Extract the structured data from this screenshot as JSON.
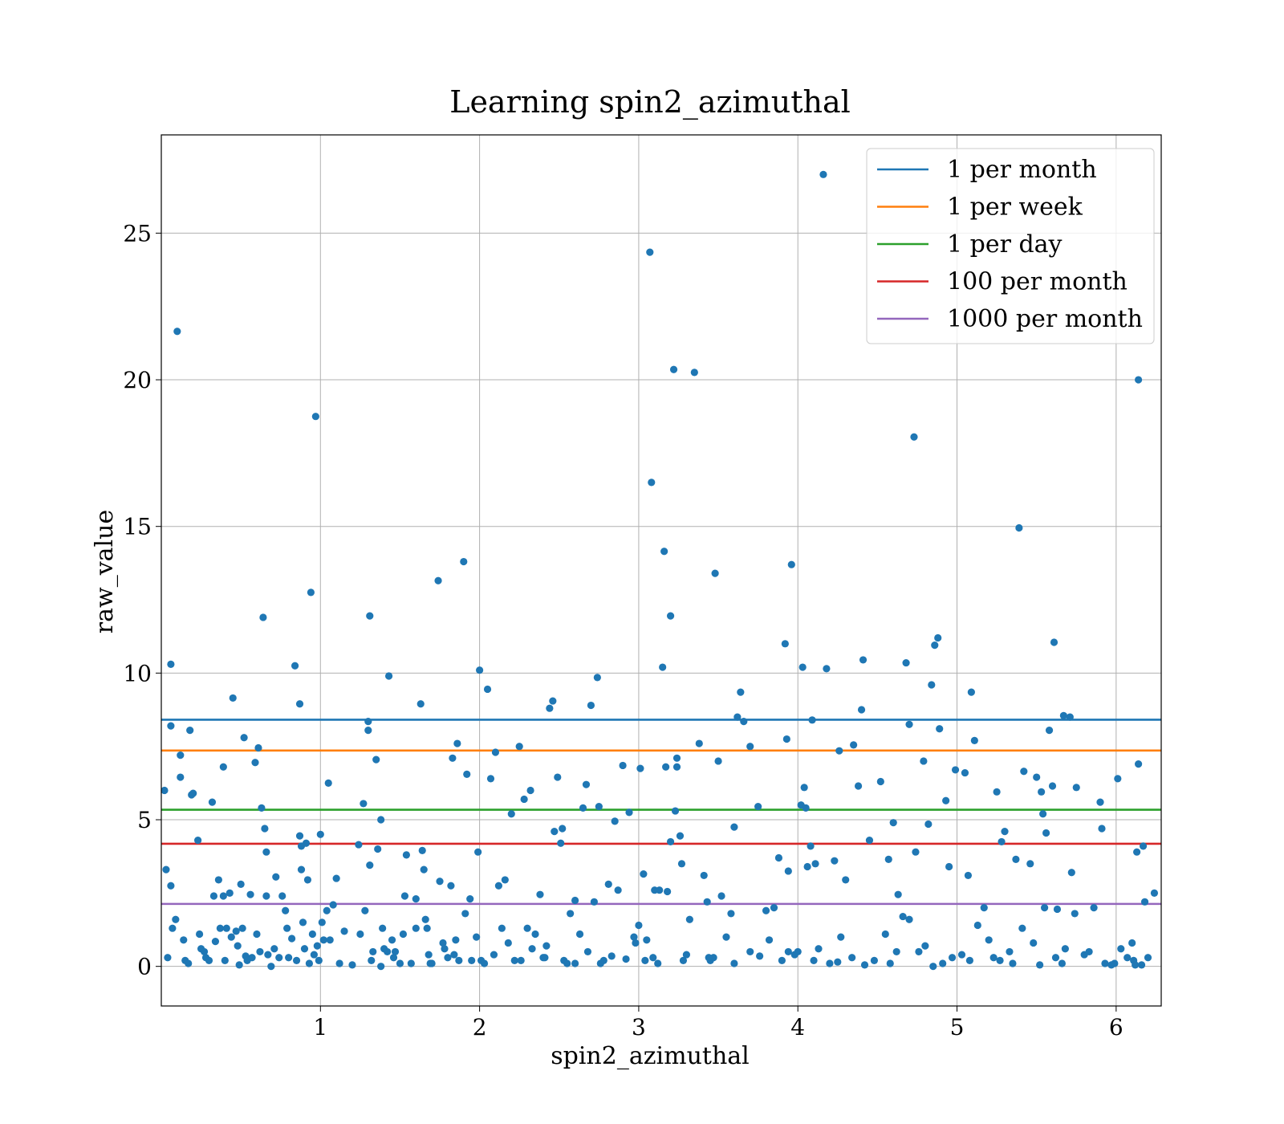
{
  "chart_data": {
    "type": "scatter",
    "title": "Learning spin2_azimuthal",
    "xlabel": "spin2_azimuthal",
    "ylabel": "raw_value",
    "xlim": [
      0.0,
      6.2832
    ],
    "ylim": [
      -1.35,
      28.35
    ],
    "xticks": [
      1,
      2,
      3,
      4,
      5,
      6
    ],
    "yticks": [
      0,
      5,
      10,
      15,
      20,
      25
    ],
    "grid": true,
    "legend_position": "top-right",
    "point_color": "#1f77b4",
    "lines": [
      {
        "name": "1 per month",
        "y": 8.41,
        "color": "#1f77b4"
      },
      {
        "name": "1 per week",
        "y": 7.36,
        "color": "#ff7f0e"
      },
      {
        "name": "1 per day",
        "y": 5.34,
        "color": "#2ca02c"
      },
      {
        "name": "100 per month",
        "y": 4.18,
        "color": "#d62728"
      },
      {
        "name": "1000 per month",
        "y": 2.13,
        "color": "#9467bd"
      }
    ],
    "points": [
      [
        0.02,
        6.0
      ],
      [
        0.03,
        3.3
      ],
      [
        0.04,
        0.3
      ],
      [
        0.06,
        10.3
      ],
      [
        0.06,
        8.2
      ],
      [
        0.06,
        2.75
      ],
      [
        0.07,
        1.3
      ],
      [
        0.09,
        1.6
      ],
      [
        0.1,
        21.65
      ],
      [
        0.12,
        7.2
      ],
      [
        0.12,
        6.45
      ],
      [
        0.14,
        0.9
      ],
      [
        0.15,
        0.2
      ],
      [
        0.18,
        8.05
      ],
      [
        0.19,
        5.85
      ],
      [
        0.2,
        5.9
      ],
      [
        0.23,
        4.3
      ],
      [
        0.24,
        1.1
      ],
      [
        0.25,
        0.6
      ],
      [
        0.28,
        0.3
      ],
      [
        0.3,
        0.2
      ],
      [
        0.32,
        5.6
      ],
      [
        0.33,
        2.4
      ],
      [
        0.34,
        0.85
      ],
      [
        0.36,
        2.95
      ],
      [
        0.37,
        1.3
      ],
      [
        0.39,
        6.8
      ],
      [
        0.39,
        2.4
      ],
      [
        0.4,
        0.2
      ],
      [
        0.41,
        1.3
      ],
      [
        0.43,
        2.5
      ],
      [
        0.44,
        1.0
      ],
      [
        0.45,
        9.15
      ],
      [
        0.47,
        1.2
      ],
      [
        0.48,
        0.7
      ],
      [
        0.5,
        2.8
      ],
      [
        0.51,
        1.3
      ],
      [
        0.52,
        7.8
      ],
      [
        0.53,
        0.35
      ],
      [
        0.56,
        2.45
      ],
      [
        0.57,
        0.3
      ],
      [
        0.59,
        6.95
      ],
      [
        0.6,
        1.1
      ],
      [
        0.61,
        7.45
      ],
      [
        0.62,
        0.5
      ],
      [
        0.63,
        5.4
      ],
      [
        0.64,
        11.9
      ],
      [
        0.65,
        4.7
      ],
      [
        0.66,
        3.9
      ],
      [
        0.66,
        2.4
      ],
      [
        0.67,
        0.4
      ],
      [
        0.69,
        0.0
      ],
      [
        0.71,
        0.6
      ],
      [
        0.72,
        3.05
      ],
      [
        0.74,
        0.3
      ],
      [
        0.76,
        2.4
      ],
      [
        0.78,
        1.9
      ],
      [
        0.8,
        0.3
      ],
      [
        0.82,
        0.95
      ],
      [
        0.84,
        10.25
      ],
      [
        0.85,
        0.2
      ],
      [
        0.87,
        8.95
      ],
      [
        0.87,
        4.45
      ],
      [
        0.88,
        3.3
      ],
      [
        0.88,
        4.1
      ],
      [
        0.89,
        1.5
      ],
      [
        0.9,
        0.6
      ],
      [
        0.91,
        4.2
      ],
      [
        0.92,
        2.95
      ],
      [
        0.93,
        0.1
      ],
      [
        0.94,
        12.75
      ],
      [
        0.95,
        1.1
      ],
      [
        0.97,
        18.75
      ],
      [
        0.98,
        0.7
      ],
      [
        0.99,
        0.2
      ],
      [
        1.0,
        4.5
      ],
      [
        1.01,
        1.5
      ],
      [
        1.02,
        0.9
      ],
      [
        1.04,
        1.9
      ],
      [
        1.05,
        6.25
      ],
      [
        1.06,
        0.9
      ],
      [
        1.08,
        2.1
      ],
      [
        1.1,
        3.0
      ],
      [
        1.15,
        1.2
      ],
      [
        1.2,
        0.05
      ],
      [
        1.24,
        4.15
      ],
      [
        1.25,
        1.1
      ],
      [
        1.27,
        5.55
      ],
      [
        1.28,
        1.9
      ],
      [
        1.3,
        8.35
      ],
      [
        1.3,
        8.05
      ],
      [
        1.31,
        3.45
      ],
      [
        1.31,
        11.95
      ],
      [
        1.32,
        0.2
      ],
      [
        1.35,
        7.05
      ],
      [
        1.36,
        4.0
      ],
      [
        1.38,
        5.0
      ],
      [
        1.39,
        1.3
      ],
      [
        1.4,
        0.6
      ],
      [
        1.42,
        0.5
      ],
      [
        1.43,
        9.9
      ],
      [
        1.45,
        0.9
      ],
      [
        1.47,
        0.5
      ],
      [
        1.52,
        1.1
      ],
      [
        1.53,
        2.4
      ],
      [
        1.54,
        3.8
      ],
      [
        1.57,
        0.1
      ],
      [
        1.6,
        2.3
      ],
      [
        1.63,
        8.95
      ],
      [
        1.64,
        3.95
      ],
      [
        1.65,
        3.3
      ],
      [
        1.66,
        1.6
      ],
      [
        1.67,
        1.3
      ],
      [
        1.68,
        0.4
      ],
      [
        1.7,
        0.1
      ],
      [
        1.74,
        13.15
      ],
      [
        1.75,
        2.9
      ],
      [
        1.77,
        0.8
      ],
      [
        1.8,
        0.3
      ],
      [
        1.82,
        2.75
      ],
      [
        1.83,
        7.1
      ],
      [
        1.85,
        0.9
      ],
      [
        1.86,
        7.6
      ],
      [
        1.87,
        0.2
      ],
      [
        1.9,
        13.8
      ],
      [
        1.91,
        1.8
      ],
      [
        1.92,
        6.55
      ],
      [
        1.94,
        2.3
      ],
      [
        1.98,
        1.0
      ],
      [
        1.99,
        3.9
      ],
      [
        2.0,
        10.1
      ],
      [
        2.01,
        0.2
      ],
      [
        2.05,
        9.45
      ],
      [
        2.07,
        6.4
      ],
      [
        2.09,
        0.4
      ],
      [
        2.1,
        7.3
      ],
      [
        2.12,
        2.75
      ],
      [
        2.14,
        1.3
      ],
      [
        2.16,
        2.95
      ],
      [
        2.2,
        5.2
      ],
      [
        2.22,
        0.2
      ],
      [
        2.25,
        7.5
      ],
      [
        2.28,
        5.7
      ],
      [
        2.3,
        1.3
      ],
      [
        2.32,
        6.0
      ],
      [
        2.35,
        1.1
      ],
      [
        2.38,
        2.45
      ],
      [
        2.4,
        0.3
      ],
      [
        2.42,
        0.7
      ],
      [
        2.44,
        8.8
      ],
      [
        2.46,
        9.05
      ],
      [
        2.47,
        4.6
      ],
      [
        2.49,
        6.45
      ],
      [
        2.51,
        4.2
      ],
      [
        2.52,
        4.7
      ],
      [
        2.55,
        0.1
      ],
      [
        2.57,
        1.8
      ],
      [
        2.6,
        2.25
      ],
      [
        2.63,
        1.1
      ],
      [
        2.65,
        5.4
      ],
      [
        2.67,
        6.2
      ],
      [
        2.7,
        8.9
      ],
      [
        2.72,
        2.2
      ],
      [
        2.74,
        9.85
      ],
      [
        2.75,
        5.45
      ],
      [
        2.78,
        0.2
      ],
      [
        2.81,
        2.8
      ],
      [
        2.85,
        4.95
      ],
      [
        2.87,
        2.6
      ],
      [
        2.9,
        6.85
      ],
      [
        2.94,
        5.25
      ],
      [
        2.97,
        1.0
      ],
      [
        3.0,
        1.4
      ],
      [
        3.01,
        6.75
      ],
      [
        3.03,
        3.15
      ],
      [
        3.05,
        0.9
      ],
      [
        3.07,
        24.35
      ],
      [
        3.08,
        16.5
      ],
      [
        3.1,
        2.6
      ],
      [
        3.13,
        2.6
      ],
      [
        3.15,
        10.2
      ],
      [
        3.16,
        14.15
      ],
      [
        3.17,
        6.8
      ],
      [
        3.18,
        2.55
      ],
      [
        3.2,
        11.95
      ],
      [
        3.2,
        4.25
      ],
      [
        3.22,
        20.35
      ],
      [
        3.23,
        5.3
      ],
      [
        3.24,
        7.1
      ],
      [
        3.24,
        6.8
      ],
      [
        3.26,
        4.45
      ],
      [
        3.27,
        3.5
      ],
      [
        3.3,
        0.4
      ],
      [
        3.35,
        20.25
      ],
      [
        3.38,
        7.6
      ],
      [
        3.41,
        3.1
      ],
      [
        3.43,
        2.2
      ],
      [
        3.45,
        0.2
      ],
      [
        3.48,
        13.4
      ],
      [
        3.5,
        7.0
      ],
      [
        3.52,
        2.4
      ],
      [
        3.55,
        1.0
      ],
      [
        3.6,
        4.75
      ],
      [
        3.62,
        8.5
      ],
      [
        3.64,
        9.35
      ],
      [
        3.66,
        8.35
      ],
      [
        3.7,
        7.5
      ],
      [
        3.75,
        5.45
      ],
      [
        3.8,
        1.9
      ],
      [
        3.85,
        2.0
      ],
      [
        3.88,
        3.7
      ],
      [
        3.92,
        11.0
      ],
      [
        3.93,
        7.75
      ],
      [
        3.94,
        3.25
      ],
      [
        3.96,
        13.7
      ],
      [
        3.98,
        0.4
      ],
      [
        4.02,
        5.5
      ],
      [
        4.03,
        10.2
      ],
      [
        4.04,
        6.1
      ],
      [
        4.05,
        5.4
      ],
      [
        4.06,
        3.4
      ],
      [
        4.08,
        4.1
      ],
      [
        4.09,
        8.4
      ],
      [
        4.11,
        3.5
      ],
      [
        4.16,
        27.0
      ],
      [
        4.18,
        10.15
      ],
      [
        4.23,
        3.6
      ],
      [
        4.26,
        7.35
      ],
      [
        4.3,
        2.95
      ],
      [
        4.35,
        7.55
      ],
      [
        4.38,
        6.15
      ],
      [
        4.4,
        8.75
      ],
      [
        4.41,
        10.45
      ],
      [
        4.45,
        4.3
      ],
      [
        4.52,
        6.3
      ],
      [
        4.57,
        3.65
      ],
      [
        4.6,
        4.9
      ],
      [
        4.63,
        2.45
      ],
      [
        4.66,
        1.7
      ],
      [
        4.68,
        10.35
      ],
      [
        4.7,
        8.25
      ],
      [
        4.73,
        18.05
      ],
      [
        4.74,
        3.9
      ],
      [
        4.79,
        7.0
      ],
      [
        4.82,
        4.85
      ],
      [
        4.84,
        9.6
      ],
      [
        4.86,
        10.95
      ],
      [
        4.88,
        11.2
      ],
      [
        4.89,
        8.1
      ],
      [
        4.93,
        5.65
      ],
      [
        4.95,
        3.4
      ],
      [
        4.99,
        6.7
      ],
      [
        5.05,
        6.6
      ],
      [
        5.07,
        3.1
      ],
      [
        5.09,
        9.35
      ],
      [
        5.11,
        7.7
      ],
      [
        5.17,
        2.0
      ],
      [
        5.25,
        5.95
      ],
      [
        5.28,
        4.25
      ],
      [
        5.3,
        4.6
      ],
      [
        5.37,
        3.65
      ],
      [
        5.39,
        14.95
      ],
      [
        5.42,
        6.65
      ],
      [
        5.46,
        3.5
      ],
      [
        5.5,
        6.45
      ],
      [
        5.53,
        5.95
      ],
      [
        5.54,
        5.2
      ],
      [
        5.56,
        4.55
      ],
      [
        5.58,
        8.05
      ],
      [
        5.6,
        6.15
      ],
      [
        5.61,
        11.05
      ],
      [
        5.63,
        1.95
      ],
      [
        5.67,
        8.55
      ],
      [
        5.71,
        8.5
      ],
      [
        5.72,
        3.2
      ],
      [
        5.75,
        6.1
      ],
      [
        5.9,
        5.6
      ],
      [
        5.91,
        4.7
      ],
      [
        6.01,
        6.4
      ],
      [
        6.11,
        0.2
      ],
      [
        6.13,
        3.9
      ],
      [
        6.14,
        20.0
      ],
      [
        6.14,
        6.9
      ],
      [
        6.17,
        4.1
      ],
      [
        6.18,
        2.2
      ],
      [
        6.24,
        2.5
      ],
      [
        1.33,
        0.5
      ],
      [
        1.46,
        0.3
      ],
      [
        1.6,
        1.3
      ],
      [
        1.78,
        0.6
      ],
      [
        1.95,
        0.2
      ],
      [
        2.18,
        0.8
      ],
      [
        2.33,
        0.6
      ],
      [
        2.53,
        0.2
      ],
      [
        2.68,
        0.5
      ],
      [
        2.83,
        0.35
      ],
      [
        2.98,
        0.8
      ],
      [
        3.04,
        0.2
      ],
      [
        3.12,
        0.1
      ],
      [
        3.32,
        1.6
      ],
      [
        3.47,
        0.3
      ],
      [
        3.58,
        1.8
      ],
      [
        3.7,
        0.5
      ],
      [
        3.82,
        0.9
      ],
      [
        3.9,
        0.2
      ],
      [
        4.0,
        0.5
      ],
      [
        4.13,
        0.6
      ],
      [
        4.2,
        0.1
      ],
      [
        4.27,
        1.0
      ],
      [
        4.34,
        0.3
      ],
      [
        4.48,
        0.2
      ],
      [
        4.55,
        1.1
      ],
      [
        4.62,
        0.5
      ],
      [
        4.7,
        1.6
      ],
      [
        4.8,
        0.7
      ],
      [
        4.85,
        0.0
      ],
      [
        4.97,
        0.3
      ],
      [
        5.03,
        0.4
      ],
      [
        5.13,
        1.4
      ],
      [
        5.2,
        0.9
      ],
      [
        5.27,
        0.2
      ],
      [
        5.33,
        0.5
      ],
      [
        5.41,
        1.3
      ],
      [
        5.48,
        0.8
      ],
      [
        5.55,
        2.0
      ],
      [
        5.62,
        0.3
      ],
      [
        5.68,
        0.6
      ],
      [
        5.74,
        1.8
      ],
      [
        5.8,
        0.4
      ],
      [
        5.86,
        2.0
      ],
      [
        5.93,
        0.1
      ],
      [
        5.97,
        0.05
      ],
      [
        6.03,
        0.6
      ],
      [
        6.07,
        0.3
      ],
      [
        6.1,
        0.8
      ],
      [
        6.16,
        0.05
      ],
      [
        6.2,
        0.3
      ],
      [
        0.17,
        0.1
      ],
      [
        0.27,
        0.5
      ],
      [
        0.49,
        0.05
      ],
      [
        0.54,
        0.2
      ],
      [
        0.79,
        1.3
      ],
      [
        0.96,
        0.4
      ],
      [
        1.12,
        0.1
      ],
      [
        1.38,
        0.0
      ],
      [
        1.5,
        0.1
      ],
      [
        1.69,
        0.1
      ],
      [
        1.84,
        0.4
      ],
      [
        2.03,
        0.1
      ],
      [
        2.26,
        0.2
      ],
      [
        2.41,
        0.3
      ],
      [
        2.6,
        0.1
      ],
      [
        2.76,
        0.1
      ],
      [
        2.92,
        0.25
      ],
      [
        3.09,
        0.3
      ],
      [
        3.28,
        0.2
      ],
      [
        3.44,
        0.3
      ],
      [
        3.6,
        0.1
      ],
      [
        3.76,
        0.35
      ],
      [
        3.94,
        0.5
      ],
      [
        4.1,
        0.2
      ],
      [
        4.25,
        0.15
      ],
      [
        4.42,
        0.05
      ],
      [
        4.58,
        0.1
      ],
      [
        4.76,
        0.5
      ],
      [
        4.91,
        0.1
      ],
      [
        5.08,
        0.2
      ],
      [
        5.23,
        0.3
      ],
      [
        5.35,
        0.1
      ],
      [
        5.52,
        0.05
      ],
      [
        5.66,
        0.1
      ],
      [
        5.83,
        0.5
      ],
      [
        5.99,
        0.1
      ],
      [
        6.12,
        0.05
      ]
    ]
  }
}
